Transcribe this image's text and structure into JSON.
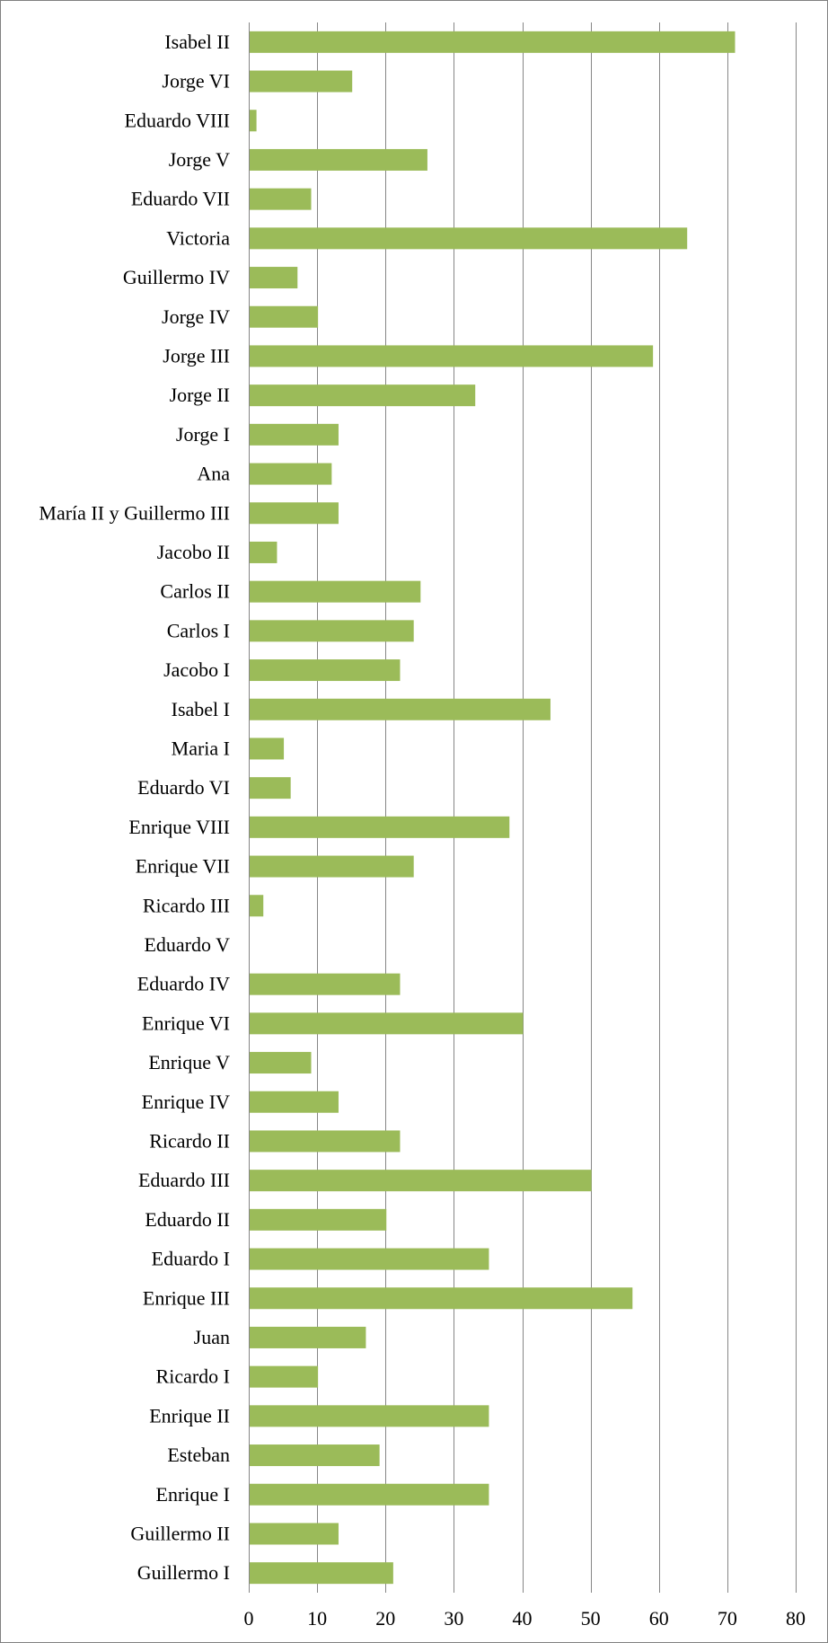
{
  "chart_data": {
    "type": "bar",
    "orientation": "horizontal",
    "categories": [
      "Isabel II",
      "Jorge VI",
      "Eduardo VIII",
      "Jorge V",
      "Eduardo VII",
      "Victoria",
      "Guillermo IV",
      "Jorge IV",
      "Jorge III",
      "Jorge II",
      "Jorge I",
      "Ana",
      "María II y Guillermo III",
      "Jacobo II",
      "Carlos II",
      "Carlos I",
      "Jacobo I",
      "Isabel I",
      "Maria I",
      "Eduardo VI",
      "Enrique VIII",
      "Enrique VII",
      "Ricardo III",
      "Eduardo V",
      "Eduardo IV",
      "Enrique VI",
      "Enrique V",
      "Enrique IV",
      "Ricardo II",
      "Eduardo III",
      "Eduardo II",
      "Eduardo I",
      "Enrique III",
      "Juan",
      "Ricardo I",
      "Enrique II",
      "Esteban",
      "Enrique I",
      "Guillermo II",
      "Guillermo I"
    ],
    "values": [
      71,
      15,
      1,
      26,
      9,
      64,
      7,
      10,
      59,
      33,
      13,
      12,
      13,
      4,
      25,
      24,
      22,
      44,
      5,
      6,
      38,
      24,
      2,
      0,
      22,
      40,
      9,
      13,
      22,
      50,
      20,
      35,
      56,
      17,
      10,
      35,
      19,
      35,
      13,
      21
    ],
    "xlim": [
      0,
      80
    ],
    "xticks": [
      "0",
      "10",
      "20",
      "30",
      "40",
      "50",
      "60",
      "70",
      "80"
    ],
    "title": "",
    "xlabel": "",
    "ylabel": "",
    "grid": "vertical",
    "legend": "none",
    "bar_color": "#9BBB59",
    "gridline_color": "#868686"
  }
}
